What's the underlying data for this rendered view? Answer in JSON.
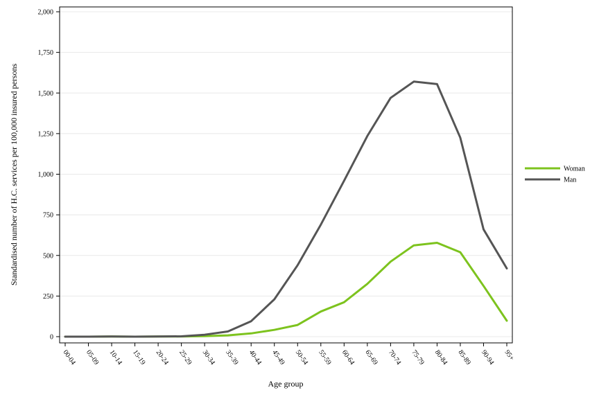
{
  "chart_data": {
    "type": "line",
    "title": "",
    "xlabel": "Age group",
    "ylabel": "Standardised number of H.C. services per 100,000 insured persons",
    "categories": [
      "00-04",
      "05-09",
      "10-14",
      "15-19",
      "20-24",
      "25-29",
      "30-34",
      "35-39",
      "40-44",
      "45-49",
      "50-54",
      "55-59",
      "60-64",
      "65-69",
      "70-74",
      "75-79",
      "80-84",
      "85-89",
      "90-94",
      "95+"
    ],
    "ylim": [
      0,
      2000
    ],
    "yticks": [
      0,
      250,
      500,
      750,
      1000,
      1250,
      1500,
      1750,
      2000
    ],
    "ytick_labels": [
      "0",
      "250",
      "500",
      "750",
      "1,000",
      "1,250",
      "1,500",
      "1,750",
      "2,000"
    ],
    "grid": true,
    "legend_position": "right",
    "series": [
      {
        "name": "Woman",
        "color": "#7dc31e",
        "values": [
          0,
          0,
          1,
          0,
          1,
          1,
          3,
          8,
          20,
          42,
          72,
          155,
          212,
          325,
          462,
          562,
          578,
          520,
          312,
          98
        ]
      },
      {
        "name": "Man",
        "color": "#555555",
        "values": [
          0,
          0,
          1,
          0,
          1,
          2,
          12,
          32,
          95,
          230,
          440,
          690,
          960,
          1235,
          1470,
          1570,
          1555,
          1225,
          660,
          420
        ]
      }
    ]
  }
}
